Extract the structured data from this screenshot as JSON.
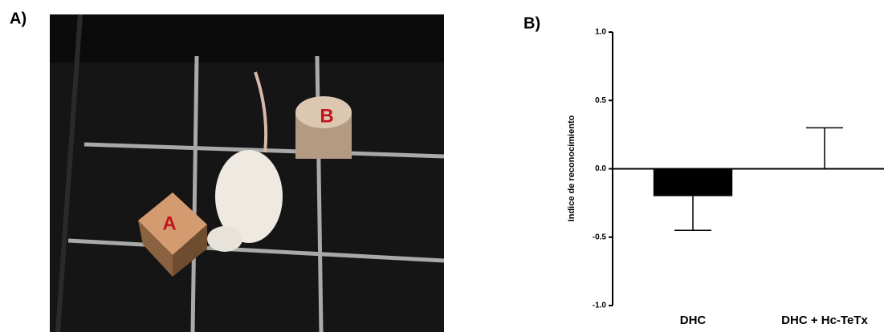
{
  "photo_panel": {
    "label": "A)",
    "object_labels": [
      "A",
      "B"
    ]
  },
  "chart_data": {
    "type": "bar",
    "panel_label": "B)",
    "y_label": "Indice de reconocimiento",
    "categories": [
      "DHC",
      "DHC + Hc-TeTx"
    ],
    "values": [
      -0.2,
      0
    ],
    "errors": [
      0.25,
      0.3
    ],
    "color": "#000000",
    "ylim": [
      -1,
      1
    ],
    "yticks": [
      {
        "value": -1,
        "label": "-1.0"
      },
      -0.5,
      {
        "value": 0,
        "label": "0.0"
      },
      0.5,
      {
        "value": 1,
        "label": "1.0"
      }
    ]
  }
}
